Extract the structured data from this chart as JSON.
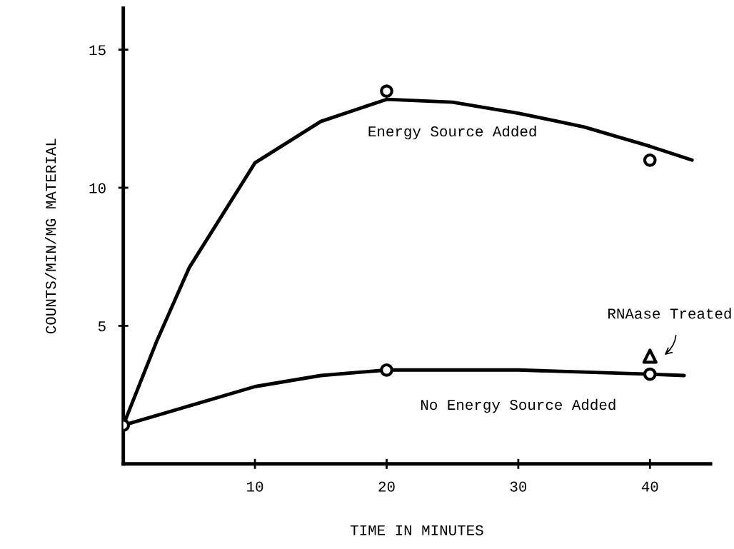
{
  "chart_data": {
    "type": "line",
    "xlabel": "TIME IN MINUTES",
    "ylabel": "COUNTS/MIN/MG MATERIAL",
    "xlim": [
      0,
      44.6
    ],
    "ylim": [
      0,
      16.5
    ],
    "xticks": [
      10,
      20,
      30,
      40
    ],
    "yticks": [
      5,
      10,
      15
    ],
    "grid": false,
    "legend": false,
    "series": [
      {
        "name": "Energy Source Added",
        "color": "#000000",
        "marker": "none",
        "x": [
          0,
          2.5,
          5,
          10,
          15,
          20,
          25,
          30,
          35,
          40,
          43.2
        ],
        "values": [
          1.4,
          4.4,
          7.1,
          10.9,
          12.4,
          13.2,
          13.1,
          12.7,
          12.2,
          11.5,
          11.0
        ]
      },
      {
        "name": "No Energy Source Added",
        "color": "#000000",
        "marker": "none",
        "x": [
          0,
          5,
          10,
          15,
          20,
          30,
          40,
          42.6
        ],
        "values": [
          1.4,
          2.1,
          2.8,
          3.2,
          3.4,
          3.4,
          3.25,
          3.2
        ]
      },
      {
        "type": "scatter",
        "color": "#000000",
        "marker": "circle",
        "x": [
          0,
          20,
          40
        ],
        "values": [
          1.4,
          13.5,
          11.0
        ]
      },
      {
        "type": "scatter",
        "color": "#000000",
        "marker": "circle",
        "x": [
          20,
          40
        ],
        "values": [
          3.4,
          3.25
        ]
      },
      {
        "type": "scatter",
        "color": "#000000",
        "marker": "triangle",
        "x": [
          40
        ],
        "values": [
          3.9
        ]
      }
    ],
    "annotations": [
      {
        "text": "RNAase Treated",
        "x": 40,
        "y": 3.9
      }
    ]
  }
}
